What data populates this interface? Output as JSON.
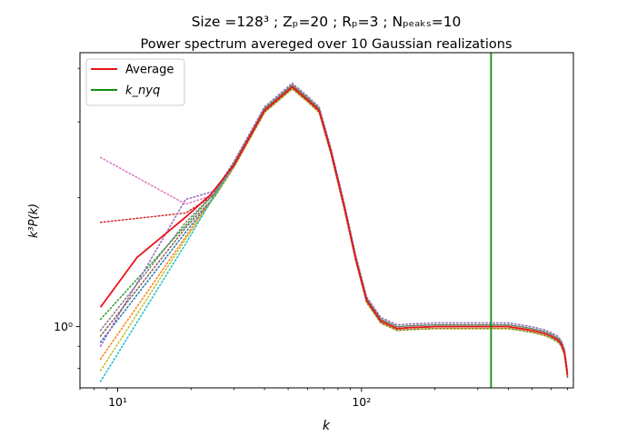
{
  "chart_data": {
    "type": "line",
    "title_line1": "Size =128³ ; Zₚ=20 ; Rₚ=3 ; Nₚₑₐₖₛ=10",
    "title_line2": "Power spectrum avereged over 10 Gaussian realizations",
    "xlabel": "k",
    "ylabel": "k³P(k)",
    "x_scale": "log",
    "y_scale": "log",
    "xlim": [
      7,
      740
    ],
    "ylim": [
      0.72,
      4.35
    ],
    "x_ticks": [
      {
        "value": 10,
        "label": "10¹"
      },
      {
        "value": 100,
        "label": "10²"
      }
    ],
    "y_ticks": [
      {
        "value": 1,
        "label": "10⁰"
      }
    ],
    "grid": false,
    "legend_position": "top-left",
    "legend": [
      {
        "label": "Average",
        "color": "#e8141a",
        "style": "solid"
      },
      {
        "label": "k_nyq",
        "color": "#138d13",
        "style": "solid"
      }
    ],
    "nyquist_k": 340,
    "average": {
      "name": "Average",
      "color": "#e8141a",
      "x": [
        8.5,
        12,
        19,
        24,
        30,
        40,
        52,
        60,
        67,
        75,
        85,
        95,
        105,
        120,
        140,
        160,
        200,
        250,
        300,
        340,
        400,
        450,
        500,
        560,
        600,
        640,
        660,
        680,
        690,
        700
      ],
      "y": [
        1.11,
        1.45,
        1.8,
        2.03,
        2.38,
        3.19,
        3.62,
        3.38,
        3.19,
        2.55,
        1.9,
        1.43,
        1.15,
        1.03,
        0.99,
        0.995,
        1.0,
        1.0,
        1.0,
        1.0,
        1.0,
        0.99,
        0.98,
        0.965,
        0.95,
        0.93,
        0.91,
        0.87,
        0.82,
        0.77
      ]
    },
    "realization_shape": {
      "x": [
        25,
        30,
        40,
        52,
        60,
        67,
        75,
        85,
        95,
        105,
        120,
        140,
        160,
        200,
        250,
        300,
        340,
        400,
        450,
        500,
        560,
        600,
        640,
        660,
        680,
        690,
        700
      ],
      "y": [
        2.03,
        2.38,
        3.19,
        3.62,
        3.38,
        3.19,
        2.55,
        1.9,
        1.43,
        1.15,
        1.03,
        0.99,
        0.995,
        1.0,
        1.0,
        1.0,
        1.0,
        1.0,
        0.99,
        0.98,
        0.965,
        0.95,
        0.93,
        0.91,
        0.87,
        0.82,
        0.77
      ]
    },
    "realizations": [
      {
        "color": "#1f77b4",
        "y_low": 0.92,
        "k_mid": 19,
        "y_mid": 1.66,
        "shift": 0.99
      },
      {
        "color": "#ff7f0e",
        "y_low": 0.84,
        "k_mid": 19,
        "y_mid": 1.62,
        "shift": 1.0
      },
      {
        "color": "#2ca02c",
        "y_low": 1.04,
        "k_mid": 19,
        "y_mid": 1.72,
        "shift": 1.01
      },
      {
        "color": "#d62728",
        "y_low": 1.75,
        "k_mid": 19,
        "y_mid": 1.84,
        "shift": 1.0
      },
      {
        "color": "#9467bd",
        "y_low": 0.9,
        "k_mid": 19,
        "y_mid": 1.98,
        "shift": 1.02
      },
      {
        "color": "#8c564b",
        "y_low": 0.95,
        "k_mid": 19,
        "y_mid": 1.7,
        "shift": 0.99
      },
      {
        "color": "#e377c2",
        "y_low": 2.48,
        "k_mid": 19,
        "y_mid": 1.93,
        "shift": 1.0
      },
      {
        "color": "#7f7f7f",
        "y_low": 0.98,
        "k_mid": 19,
        "y_mid": 1.75,
        "shift": 1.01
      },
      {
        "color": "#bcbd22",
        "y_low": 0.79,
        "k_mid": 19,
        "y_mid": 1.6,
        "shift": 0.99
      },
      {
        "color": "#17becf",
        "y_low": 0.745,
        "k_mid": 19,
        "y_mid": 1.56,
        "shift": 1.0
      }
    ]
  }
}
